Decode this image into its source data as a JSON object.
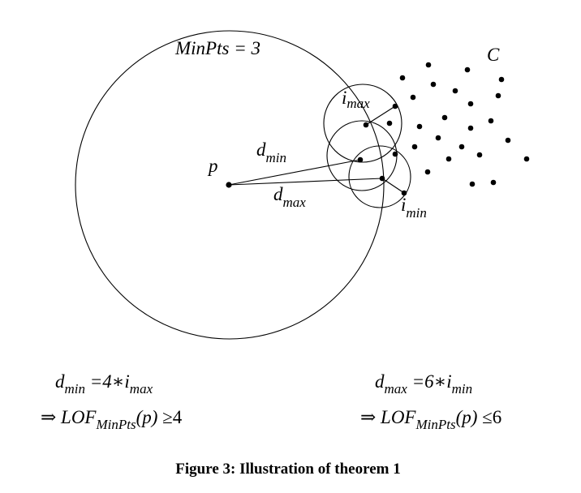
{
  "diagram": {
    "minpts_label": "MinPts = 3",
    "cluster_label": "C",
    "point_label": "p",
    "dmin_label": {
      "base": "d",
      "sub": "min"
    },
    "dmax_label": {
      "base": "d",
      "sub": "max"
    },
    "imax_label": {
      "base": "i",
      "sub": "max"
    },
    "imin_label": {
      "base": "i",
      "sub": "min"
    }
  },
  "formulas": {
    "left": {
      "line1": {
        "base": "d",
        "sub": "min",
        "rest": " =4∗",
        "base2": "i",
        "sub2": "max"
      },
      "line2": {
        "arrow": "⇒ ",
        "lof": "LOF",
        "lof_sub": "MinPts",
        "arg": "(p) ",
        "rel": "≥4"
      }
    },
    "right": {
      "line1": {
        "base": "d",
        "sub": "max",
        "rest": " =6∗",
        "base2": "i",
        "sub2": "min"
      },
      "line2": {
        "arrow": "⇒ ",
        "lof": "LOF",
        "lof_sub": "MinPts",
        "arg": "(p) ",
        "rel": "≤6"
      }
    }
  },
  "caption": "Figure 3: Illustration of theorem 1"
}
